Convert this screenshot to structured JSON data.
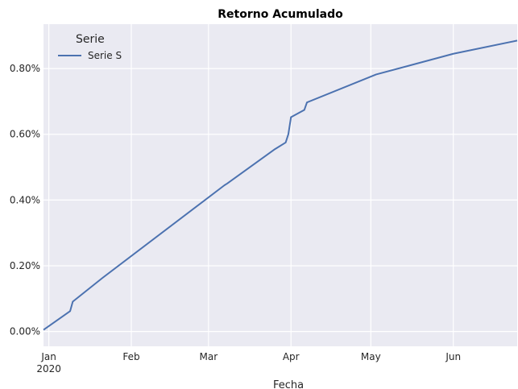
{
  "chart_data": {
    "type": "line",
    "title": "Retorno Acumulado",
    "xlabel": "Fecha",
    "ylabel": "",
    "xlim": [
      "2019-12-30",
      "2020-06-25"
    ],
    "ylim": [
      -0.045,
      0.935
    ],
    "x_ticks": [
      {
        "x": "2020-01-01",
        "label": "Jan",
        "sublabel": "2020"
      },
      {
        "x": "2020-02-01",
        "label": "Feb"
      },
      {
        "x": "2020-03-01",
        "label": "Mar"
      },
      {
        "x": "2020-04-01",
        "label": "Apr"
      },
      {
        "x": "2020-05-01",
        "label": "May"
      },
      {
        "x": "2020-06-01",
        "label": "Jun"
      }
    ],
    "y_ticks": [
      {
        "y": 0.0,
        "label": "0.00%"
      },
      {
        "y": 0.2,
        "label": "0.20%"
      },
      {
        "y": 0.4,
        "label": "0.40%"
      },
      {
        "y": 0.6,
        "label": "0.60%"
      },
      {
        "y": 0.8,
        "label": "0.80%"
      }
    ],
    "grid": true,
    "background": "#eaeaf2",
    "grid_color": "#ffffff",
    "legend": {
      "title": "Serie",
      "position": "top-left"
    },
    "series": [
      {
        "name": "Serie S",
        "color": "#4c72b0",
        "x": [
          "2019-12-30",
          "2020-01-09",
          "2020-01-10",
          "2020-01-21",
          "2020-03-07",
          "2020-03-08",
          "2020-03-26",
          "2020-03-30",
          "2020-03-31",
          "2020-04-01",
          "2020-04-06",
          "2020-04-07",
          "2020-05-03",
          "2020-06-01",
          "2020-06-25"
        ],
        "values": [
          0.005,
          0.062,
          0.091,
          0.162,
          0.445,
          0.45,
          0.555,
          0.575,
          0.6,
          0.652,
          0.674,
          0.697,
          0.782,
          0.845,
          0.885
        ]
      }
    ]
  }
}
